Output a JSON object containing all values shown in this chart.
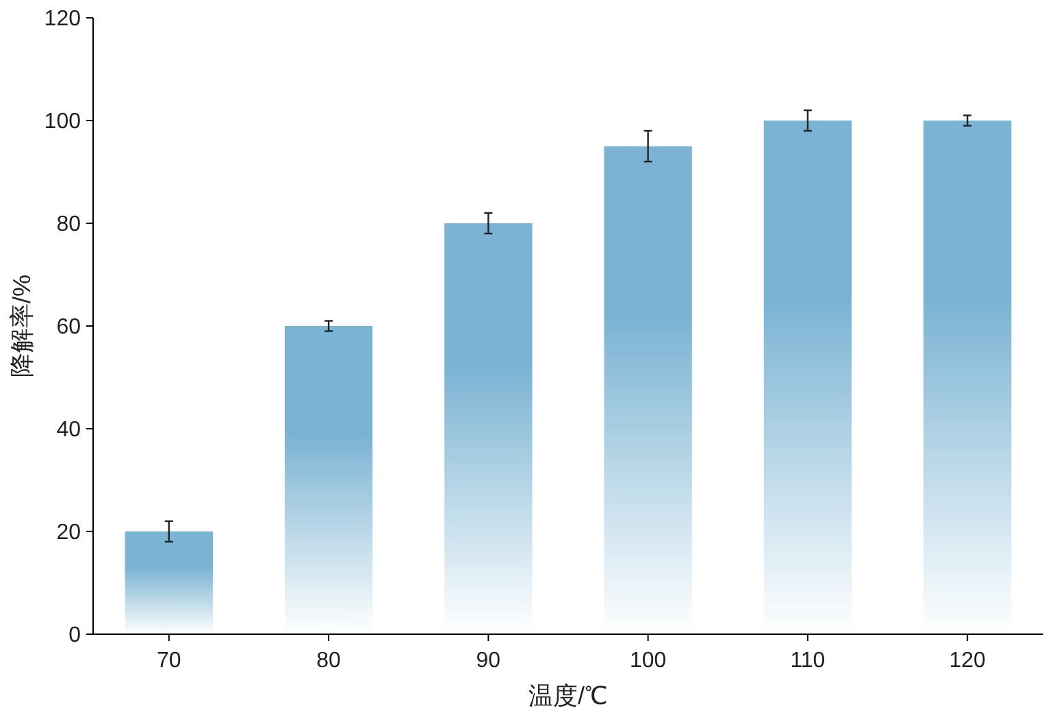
{
  "chart_data": {
    "type": "bar",
    "xlabel": "温度/℃",
    "ylabel": "降解率/%",
    "categories": [
      "70",
      "80",
      "90",
      "100",
      "110",
      "120"
    ],
    "values": [
      20,
      60,
      80,
      95,
      100,
      100
    ],
    "errors": [
      2,
      1,
      2,
      3,
      2,
      1
    ],
    "color": "#7ab3d3",
    "ylim": [
      0,
      120
    ],
    "yticks": [
      0,
      20,
      40,
      60,
      80,
      100,
      120
    ],
    "grid": false
  }
}
